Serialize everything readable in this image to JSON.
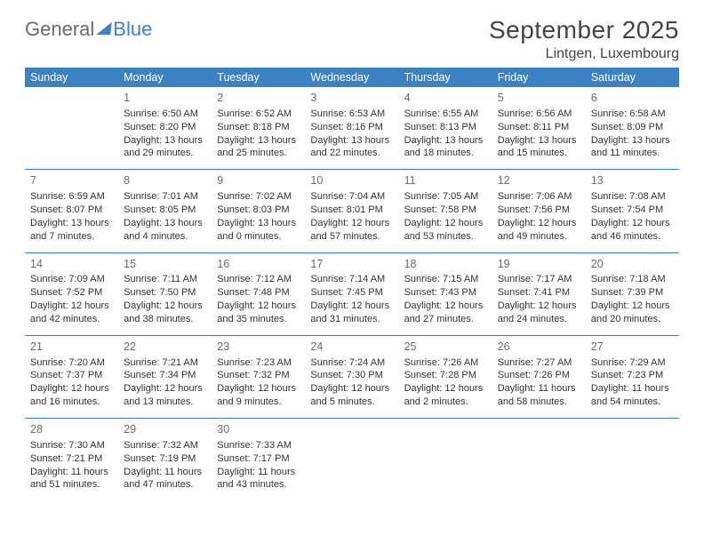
{
  "logo": {
    "part1": "General",
    "part2": "Blue"
  },
  "header": {
    "month_title": "September 2025",
    "location": "Lintgen, Luxembourg"
  },
  "colors": {
    "accent": "#3b82c4",
    "text": "#333333",
    "muted": "#6b6b6b",
    "header_text": "#ffffff",
    "bg": "#ffffff"
  },
  "typography": {
    "title_fontsize": 28,
    "location_fontsize": 16,
    "th_fontsize": 12.5,
    "cell_fontsize": 11,
    "daynum_fontsize": 12.5
  },
  "weekdays": [
    "Sunday",
    "Monday",
    "Tuesday",
    "Wednesday",
    "Thursday",
    "Friday",
    "Saturday"
  ],
  "weeks": [
    [
      {
        "day": "",
        "sunrise": "",
        "sunset": "",
        "daylight": ""
      },
      {
        "day": "1",
        "sunrise": "Sunrise: 6:50 AM",
        "sunset": "Sunset: 8:20 PM",
        "daylight": "Daylight: 13 hours and 29 minutes."
      },
      {
        "day": "2",
        "sunrise": "Sunrise: 6:52 AM",
        "sunset": "Sunset: 8:18 PM",
        "daylight": "Daylight: 13 hours and 25 minutes."
      },
      {
        "day": "3",
        "sunrise": "Sunrise: 6:53 AM",
        "sunset": "Sunset: 8:16 PM",
        "daylight": "Daylight: 13 hours and 22 minutes."
      },
      {
        "day": "4",
        "sunrise": "Sunrise: 6:55 AM",
        "sunset": "Sunset: 8:13 PM",
        "daylight": "Daylight: 13 hours and 18 minutes."
      },
      {
        "day": "5",
        "sunrise": "Sunrise: 6:56 AM",
        "sunset": "Sunset: 8:11 PM",
        "daylight": "Daylight: 13 hours and 15 minutes."
      },
      {
        "day": "6",
        "sunrise": "Sunrise: 6:58 AM",
        "sunset": "Sunset: 8:09 PM",
        "daylight": "Daylight: 13 hours and 11 minutes."
      }
    ],
    [
      {
        "day": "7",
        "sunrise": "Sunrise: 6:59 AM",
        "sunset": "Sunset: 8:07 PM",
        "daylight": "Daylight: 13 hours and 7 minutes."
      },
      {
        "day": "8",
        "sunrise": "Sunrise: 7:01 AM",
        "sunset": "Sunset: 8:05 PM",
        "daylight": "Daylight: 13 hours and 4 minutes."
      },
      {
        "day": "9",
        "sunrise": "Sunrise: 7:02 AM",
        "sunset": "Sunset: 8:03 PM",
        "daylight": "Daylight: 13 hours and 0 minutes."
      },
      {
        "day": "10",
        "sunrise": "Sunrise: 7:04 AM",
        "sunset": "Sunset: 8:01 PM",
        "daylight": "Daylight: 12 hours and 57 minutes."
      },
      {
        "day": "11",
        "sunrise": "Sunrise: 7:05 AM",
        "sunset": "Sunset: 7:58 PM",
        "daylight": "Daylight: 12 hours and 53 minutes."
      },
      {
        "day": "12",
        "sunrise": "Sunrise: 7:06 AM",
        "sunset": "Sunset: 7:56 PM",
        "daylight": "Daylight: 12 hours and 49 minutes."
      },
      {
        "day": "13",
        "sunrise": "Sunrise: 7:08 AM",
        "sunset": "Sunset: 7:54 PM",
        "daylight": "Daylight: 12 hours and 46 minutes."
      }
    ],
    [
      {
        "day": "14",
        "sunrise": "Sunrise: 7:09 AM",
        "sunset": "Sunset: 7:52 PM",
        "daylight": "Daylight: 12 hours and 42 minutes."
      },
      {
        "day": "15",
        "sunrise": "Sunrise: 7:11 AM",
        "sunset": "Sunset: 7:50 PM",
        "daylight": "Daylight: 12 hours and 38 minutes."
      },
      {
        "day": "16",
        "sunrise": "Sunrise: 7:12 AM",
        "sunset": "Sunset: 7:48 PM",
        "daylight": "Daylight: 12 hours and 35 minutes."
      },
      {
        "day": "17",
        "sunrise": "Sunrise: 7:14 AM",
        "sunset": "Sunset: 7:45 PM",
        "daylight": "Daylight: 12 hours and 31 minutes."
      },
      {
        "day": "18",
        "sunrise": "Sunrise: 7:15 AM",
        "sunset": "Sunset: 7:43 PM",
        "daylight": "Daylight: 12 hours and 27 minutes."
      },
      {
        "day": "19",
        "sunrise": "Sunrise: 7:17 AM",
        "sunset": "Sunset: 7:41 PM",
        "daylight": "Daylight: 12 hours and 24 minutes."
      },
      {
        "day": "20",
        "sunrise": "Sunrise: 7:18 AM",
        "sunset": "Sunset: 7:39 PM",
        "daylight": "Daylight: 12 hours and 20 minutes."
      }
    ],
    [
      {
        "day": "21",
        "sunrise": "Sunrise: 7:20 AM",
        "sunset": "Sunset: 7:37 PM",
        "daylight": "Daylight: 12 hours and 16 minutes."
      },
      {
        "day": "22",
        "sunrise": "Sunrise: 7:21 AM",
        "sunset": "Sunset: 7:34 PM",
        "daylight": "Daylight: 12 hours and 13 minutes."
      },
      {
        "day": "23",
        "sunrise": "Sunrise: 7:23 AM",
        "sunset": "Sunset: 7:32 PM",
        "daylight": "Daylight: 12 hours and 9 minutes."
      },
      {
        "day": "24",
        "sunrise": "Sunrise: 7:24 AM",
        "sunset": "Sunset: 7:30 PM",
        "daylight": "Daylight: 12 hours and 5 minutes."
      },
      {
        "day": "25",
        "sunrise": "Sunrise: 7:26 AM",
        "sunset": "Sunset: 7:28 PM",
        "daylight": "Daylight: 12 hours and 2 minutes."
      },
      {
        "day": "26",
        "sunrise": "Sunrise: 7:27 AM",
        "sunset": "Sunset: 7:26 PM",
        "daylight": "Daylight: 11 hours and 58 minutes."
      },
      {
        "day": "27",
        "sunrise": "Sunrise: 7:29 AM",
        "sunset": "Sunset: 7:23 PM",
        "daylight": "Daylight: 11 hours and 54 minutes."
      }
    ],
    [
      {
        "day": "28",
        "sunrise": "Sunrise: 7:30 AM",
        "sunset": "Sunset: 7:21 PM",
        "daylight": "Daylight: 11 hours and 51 minutes."
      },
      {
        "day": "29",
        "sunrise": "Sunrise: 7:32 AM",
        "sunset": "Sunset: 7:19 PM",
        "daylight": "Daylight: 11 hours and 47 minutes."
      },
      {
        "day": "30",
        "sunrise": "Sunrise: 7:33 AM",
        "sunset": "Sunset: 7:17 PM",
        "daylight": "Daylight: 11 hours and 43 minutes."
      },
      {
        "day": "",
        "sunrise": "",
        "sunset": "",
        "daylight": ""
      },
      {
        "day": "",
        "sunrise": "",
        "sunset": "",
        "daylight": ""
      },
      {
        "day": "",
        "sunrise": "",
        "sunset": "",
        "daylight": ""
      },
      {
        "day": "",
        "sunrise": "",
        "sunset": "",
        "daylight": ""
      }
    ]
  ]
}
